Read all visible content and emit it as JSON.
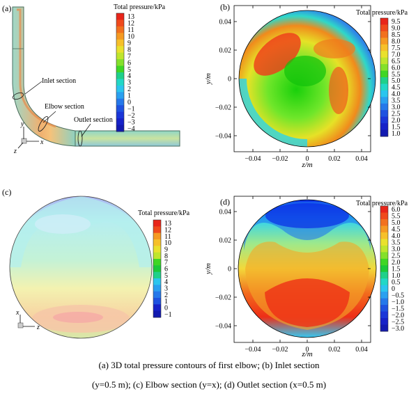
{
  "panels": {
    "a": {
      "label": "(a)",
      "legend_title": "Total pressure/kPa",
      "legend_ticks": [
        "13",
        "12",
        "11",
        "10",
        "9",
        "8",
        "7",
        "6",
        "5",
        "4",
        "3",
        "2",
        "1",
        "0",
        "−1",
        "−2",
        "−3",
        "−4"
      ],
      "annotations": [
        "Inlet section",
        "Elbow section",
        "Outlet section"
      ],
      "axes": [
        "y",
        "x",
        "z"
      ]
    },
    "b": {
      "label": "(b)",
      "legend_title": "Total pressure/kPa",
      "legend_ticks": [
        "9.5",
        "9.0",
        "8.5",
        "8.0",
        "7.5",
        "7.0",
        "6.5",
        "6.0",
        "5.5",
        "5.0",
        "4.5",
        "4.0",
        "3.5",
        "3.0",
        "2.5",
        "2.0",
        "1.5",
        "1.0"
      ],
      "xlabel": "z/m",
      "ylabel": "y/m",
      "xticks": [
        "−0.04",
        "−0.02",
        "0",
        "0.02",
        "0.04"
      ],
      "yticks": [
        "0.04",
        "0.02",
        "0",
        "−0.02",
        "−0.04"
      ]
    },
    "c": {
      "label": "(c)",
      "legend_title": "Total pressure/kPa",
      "legend_ticks": [
        "13",
        "12",
        "11",
        "10",
        "9",
        "8",
        "7",
        "6",
        "5",
        "4",
        "3",
        "2",
        "1",
        "0",
        "−1"
      ],
      "axes": [
        "x",
        "z"
      ]
    },
    "d": {
      "label": "(d)",
      "legend_title": "Total pressure/kPa",
      "legend_ticks": [
        "6.0",
        "5.5",
        "5.0",
        "4.5",
        "4.0",
        "3.5",
        "3.0",
        "2.5",
        "2.0",
        "1.5",
        "1.0",
        "0.5",
        "0",
        "−0.5",
        "−1.0",
        "−1.5",
        "−2.0",
        "−2.5",
        "−3.0"
      ],
      "xlabel": "z/m",
      "ylabel": "y/m",
      "xticks": [
        "−0.04",
        "−0.02",
        "0",
        "0.02",
        "0.04"
      ],
      "yticks": [
        "0.04",
        "0.02",
        "0",
        "−0.02",
        "−0.04"
      ]
    }
  },
  "caption": {
    "line1": "(a) 3D total pressure contours of first elbow; (b) Inlet section",
    "line2": "(y=0.5 m); (c) Elbow section (y=x); (d) Outlet section (x=0.5 m)"
  }
}
